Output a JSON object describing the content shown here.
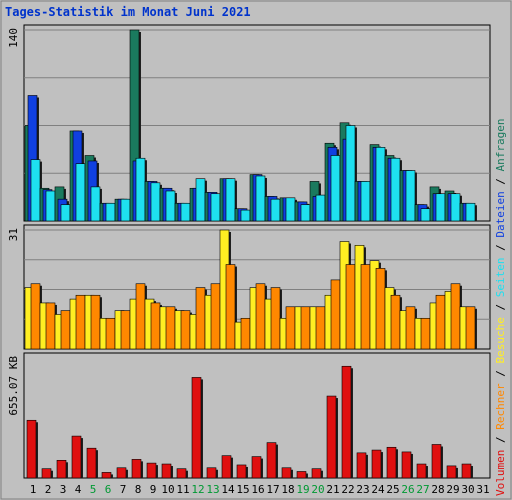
{
  "chart_data": {
    "type": "bar",
    "title": "Tages-Statistik im Monat Juni 2021",
    "days": [
      "1",
      "2",
      "3",
      "4",
      "5",
      "6",
      "7",
      "8",
      "9",
      "10",
      "11",
      "12",
      "13",
      "14",
      "15",
      "16",
      "17",
      "18",
      "19",
      "20",
      "21",
      "22",
      "23",
      "24",
      "25",
      "26",
      "27",
      "28",
      "29",
      "30",
      "31"
    ],
    "weekend_days": [
      "5",
      "6",
      "12",
      "13",
      "19",
      "20",
      "26",
      "27"
    ],
    "panels": [
      {
        "id": "top",
        "ymax_label": "140",
        "ymax": 140,
        "series": [
          {
            "name": "Anfragen",
            "color": "#1a7a5e",
            "values": [
              70,
              24,
              25,
              66,
              48,
              13,
              16,
              140,
              29,
              24,
              13,
              24,
              21,
              31,
              9,
              34,
              18,
              17,
              14,
              29,
              57,
              72,
              29,
              56,
              48,
              37,
              12,
              25,
              22,
              13,
              0
            ]
          },
          {
            "name": "Dateien",
            "color": "#1040e0",
            "values": [
              92,
              23,
              16,
              66,
              44,
              13,
              16,
              44,
              29,
              24,
              13,
              24,
              21,
              31,
              9,
              34,
              18,
              17,
              14,
              18,
              54,
              60,
              29,
              54,
              46,
              37,
              12,
              20,
              20,
              13,
              0
            ]
          },
          {
            "name": "Seiten",
            "color": "#1ee0f0",
            "values": [
              45,
              22,
              12,
              42,
              25,
              13,
              16,
              46,
              28,
              22,
              13,
              31,
              20,
              31,
              8,
              33,
              16,
              17,
              12,
              19,
              48,
              70,
              29,
              54,
              46,
              37,
              9,
              20,
              20,
              13,
              0
            ]
          }
        ]
      },
      {
        "id": "middle",
        "ymax_label": "31",
        "ymax": 31,
        "series": [
          {
            "name": "Besuche",
            "color": "#ffee22",
            "values": [
              16,
              12,
              9,
              13,
              14,
              8,
              10,
              13,
              13,
              11,
              10,
              9,
              14,
              31,
              7,
              16,
              13,
              8,
              11,
              11,
              14,
              28,
              27,
              23,
              16,
              10,
              8,
              12,
              15,
              11,
              0
            ]
          },
          {
            "name": "Rechner",
            "color": "#ff8800",
            "values": [
              17,
              12,
              10,
              14,
              14,
              8,
              10,
              17,
              12,
              11,
              10,
              16,
              17,
              22,
              8,
              17,
              16,
              11,
              11,
              11,
              18,
              22,
              22,
              21,
              14,
              11,
              8,
              14,
              17,
              11,
              0
            ]
          }
        ]
      },
      {
        "id": "bottom",
        "ymax_label": "655.07 KB",
        "ymax": 655.07,
        "series": [
          {
            "name": "Volumen",
            "color": "#e01010",
            "values": [
              310,
              50,
              95,
              225,
              160,
              30,
              55,
              100,
              80,
              75,
              50,
              540,
              55,
              120,
              70,
              115,
              190,
              55,
              35,
              50,
              440,
              600,
              135,
              150,
              165,
              140,
              75,
              180,
              65,
              75,
              0
            ]
          }
        ]
      }
    ],
    "legend_text_color": "#000000",
    "weekday_label_color": "#000000",
    "weekend_label_color": "#009933",
    "legend": [
      {
        "label": "Volumen",
        "color": "#e01010"
      },
      {
        "label": "Rechner",
        "color": "#ff8800"
      },
      {
        "label": "Besuche",
        "color": "#ffee22"
      },
      {
        "label": "Seiten",
        "color": "#1ee0f0"
      },
      {
        "label": "Dateien",
        "color": "#1040e0"
      },
      {
        "label": "Anfragen",
        "color": "#1a7a5e"
      }
    ],
    "legend_separator": " / "
  }
}
